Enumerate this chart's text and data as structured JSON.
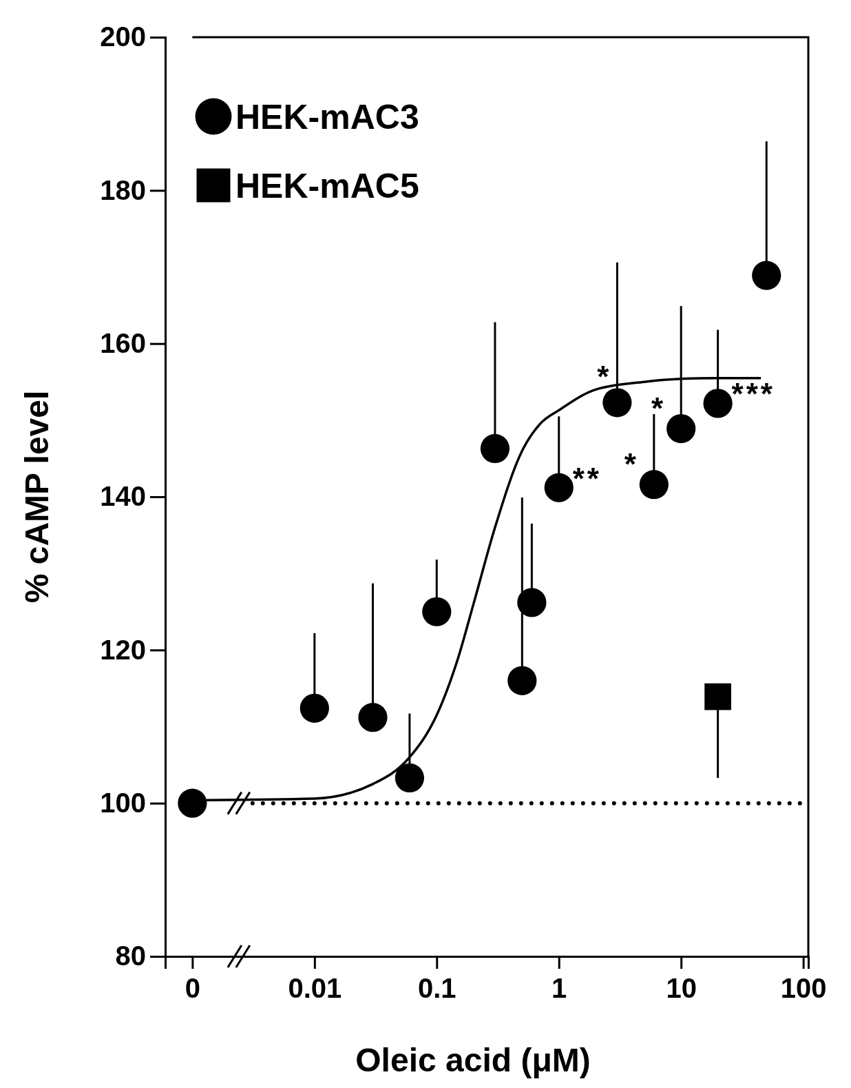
{
  "chart_data": {
    "type": "scatter",
    "xlabel": "Oleic acid (μM)",
    "ylabel": "% cAMP level",
    "log": "x",
    "xlim": [
      0.0006,
      110
    ],
    "ylim": [
      80,
      200
    ],
    "xticks": [
      {
        "value": 0.001,
        "label": "0"
      },
      0.01,
      0.1,
      1,
      10,
      100
    ],
    "yticks": [
      80,
      100,
      120,
      140,
      160,
      180,
      200
    ],
    "legend": "top left",
    "grid": false,
    "series": [
      {
        "name": "HEK-mAC3",
        "marker": "circle",
        "color": "#000000",
        "x": [
          0.001,
          0.01,
          0.03,
          0.06,
          0.1,
          0.3,
          0.5,
          0.6,
          1,
          3,
          6,
          10,
          20,
          50
        ],
        "values": [
          100,
          112.4,
          111.2,
          103.3,
          125,
          146.3,
          116,
          126.2,
          141.2,
          152.3,
          141.6,
          148.9,
          152.2,
          168.9
        ],
        "errors": [
          null,
          [
            112.4,
            122.2
          ],
          [
            111.2,
            128.7
          ],
          [
            103.3,
            111.7
          ],
          [
            125,
            131.8
          ],
          [
            146.3,
            162.8
          ],
          [
            116,
            139.9
          ],
          [
            126.2,
            136.5
          ],
          [
            141.2,
            150.5
          ],
          [
            152.3,
            170.6
          ],
          [
            141.6,
            150.8
          ],
          [
            148.9,
            164.9
          ],
          [
            152.2,
            161.8
          ],
          [
            168.9,
            186.4
          ]
        ]
      },
      {
        "name": "HEK-mAC5",
        "marker": "square",
        "color": "#000000",
        "x": [
          20
        ],
        "values": [
          113.9
        ],
        "errors": [
          [
            103.3,
            113.9
          ]
        ]
      },
      {
        "type": "line",
        "marker": "none",
        "color": "#000000",
        "x": [
          0.0013,
          0.01,
          0.03,
          0.06,
          0.1,
          0.15,
          0.2,
          0.3,
          0.5,
          0.7,
          1,
          2,
          5,
          10,
          20,
          45
        ],
        "values": [
          100.4,
          100.6,
          102.5,
          106,
          111.5,
          119,
          126,
          136,
          146,
          149.5,
          151.3,
          154,
          155,
          155.4,
          155.5,
          155.5
        ]
      }
    ],
    "ref_lines": [
      {
        "axis": "y",
        "value": 100,
        "line_style": "dotted",
        "color": "#000000"
      }
    ],
    "annotations": [
      {
        "text": "*",
        "x": 3,
        "y": 152.3
      },
      {
        "text": "**",
        "x": 1,
        "y": 141.2
      },
      {
        "text": "*",
        "x": 6,
        "y": 141.6
      },
      {
        "text": "*",
        "x": 10,
        "y": 148.9
      },
      {
        "text": "***",
        "x": 20,
        "y": 152.2
      }
    ]
  }
}
